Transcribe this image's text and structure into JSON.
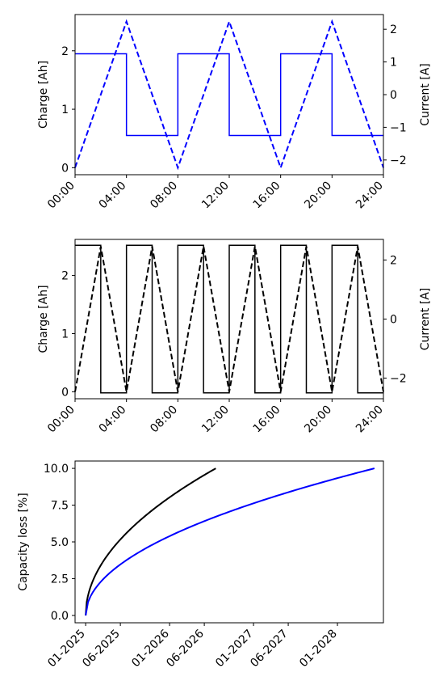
{
  "chart_data": [
    {
      "type": "line",
      "xlabel": "",
      "ylabel": "Charge [Ah]",
      "ylabel_right": "Current [A]",
      "x_ticks": [
        "00:00",
        "04:00",
        "08:00",
        "12:00",
        "16:00",
        "20:00",
        "24:00"
      ],
      "x_range_hours": [
        0,
        24
      ],
      "ylim": [
        -0.12,
        2.62
      ],
      "y_ticks": [
        0,
        1,
        2
      ],
      "ylim_right": [
        -2.45,
        2.45
      ],
      "y_ticks_right": [
        -2,
        -1,
        0,
        1,
        2
      ],
      "color": "#0000ff",
      "series": [
        {
          "axis": "left",
          "style": "dashed",
          "points": [
            [
              0,
              0.0
            ],
            [
              4,
              2.5
            ],
            [
              8,
              0.0
            ],
            [
              12,
              2.5
            ],
            [
              16,
              0.0
            ],
            [
              20,
              2.5
            ],
            [
              24,
              0.0
            ]
          ]
        },
        {
          "axis": "right",
          "style": "solid",
          "points": [
            [
              0,
              1.25
            ],
            [
              4,
              1.25
            ],
            [
              4,
              -1.25
            ],
            [
              8,
              -1.25
            ],
            [
              8,
              1.25
            ],
            [
              12,
              1.25
            ],
            [
              12,
              -1.25
            ],
            [
              16,
              -1.25
            ],
            [
              16,
              1.25
            ],
            [
              20,
              1.25
            ],
            [
              20,
              -1.25
            ],
            [
              24,
              -1.25
            ]
          ]
        }
      ]
    },
    {
      "type": "line",
      "xlabel": "",
      "ylabel": "Charge [Ah]",
      "ylabel_right": "Current [A]",
      "x_ticks": [
        "00:00",
        "04:00",
        "08:00",
        "12:00",
        "16:00",
        "20:00",
        "24:00"
      ],
      "x_range_hours": [
        0,
        24
      ],
      "ylim": [
        -0.12,
        2.62
      ],
      "y_ticks": [
        0,
        1,
        2
      ],
      "ylim_right": [
        -2.7,
        2.7
      ],
      "y_ticks_right": [
        -2,
        0,
        2
      ],
      "color": "#000000",
      "series": [
        {
          "axis": "left",
          "style": "dashed",
          "points": [
            [
              0,
              0
            ],
            [
              2,
              2.5
            ],
            [
              4,
              0
            ],
            [
              6,
              2.5
            ],
            [
              8,
              0
            ],
            [
              10,
              2.5
            ],
            [
              12,
              0
            ],
            [
              14,
              2.5
            ],
            [
              16,
              0
            ],
            [
              18,
              2.5
            ],
            [
              20,
              0
            ],
            [
              22,
              2.5
            ],
            [
              24,
              0
            ]
          ]
        },
        {
          "axis": "right",
          "style": "solid",
          "points": [
            [
              0,
              2.5
            ],
            [
              2,
              2.5
            ],
            [
              2,
              -2.5
            ],
            [
              4,
              -2.5
            ],
            [
              4,
              2.5
            ],
            [
              6,
              2.5
            ],
            [
              6,
              -2.5
            ],
            [
              8,
              -2.5
            ],
            [
              8,
              2.5
            ],
            [
              10,
              2.5
            ],
            [
              10,
              -2.5
            ],
            [
              12,
              -2.5
            ],
            [
              12,
              2.5
            ],
            [
              14,
              2.5
            ],
            [
              14,
              -2.5
            ],
            [
              16,
              -2.5
            ],
            [
              16,
              2.5
            ],
            [
              18,
              2.5
            ],
            [
              18,
              -2.5
            ],
            [
              20,
              -2.5
            ],
            [
              20,
              2.5
            ],
            [
              22,
              2.5
            ],
            [
              22,
              -2.5
            ],
            [
              24,
              -2.5
            ]
          ]
        }
      ]
    },
    {
      "type": "line",
      "xlabel": "",
      "ylabel": "Capacity loss [%]",
      "x_ticks": [
        "01-2025",
        "06-2025",
        "01-2026",
        "06-2026",
        "01-2027",
        "06-2027",
        "01-2028"
      ],
      "x_tick_dates": [
        "2025-01-01",
        "2025-06-01",
        "2026-01-01",
        "2026-06-01",
        "2027-01-01",
        "2027-06-01",
        "2028-01-01"
      ],
      "xlim": [
        "2024-11-16",
        "2028-07-19"
      ],
      "ylim": [
        -0.5,
        10.5
      ],
      "y_ticks": [
        0.0,
        2.5,
        5.0,
        7.5,
        10.0
      ],
      "y_tick_labels": [
        "0.0",
        "2.5",
        "5.0",
        "7.5",
        "10.0"
      ],
      "series": [
        {
          "color": "#000000",
          "x_start": "2025-01-01",
          "x_end": "2026-07-21",
          "y_end": 10.0,
          "shape": "square-root"
        },
        {
          "color": "#0000ff",
          "x_start": "2025-01-01",
          "x_end": "2028-06-10",
          "y_end": 10.0,
          "shape": "square-root"
        }
      ]
    }
  ]
}
